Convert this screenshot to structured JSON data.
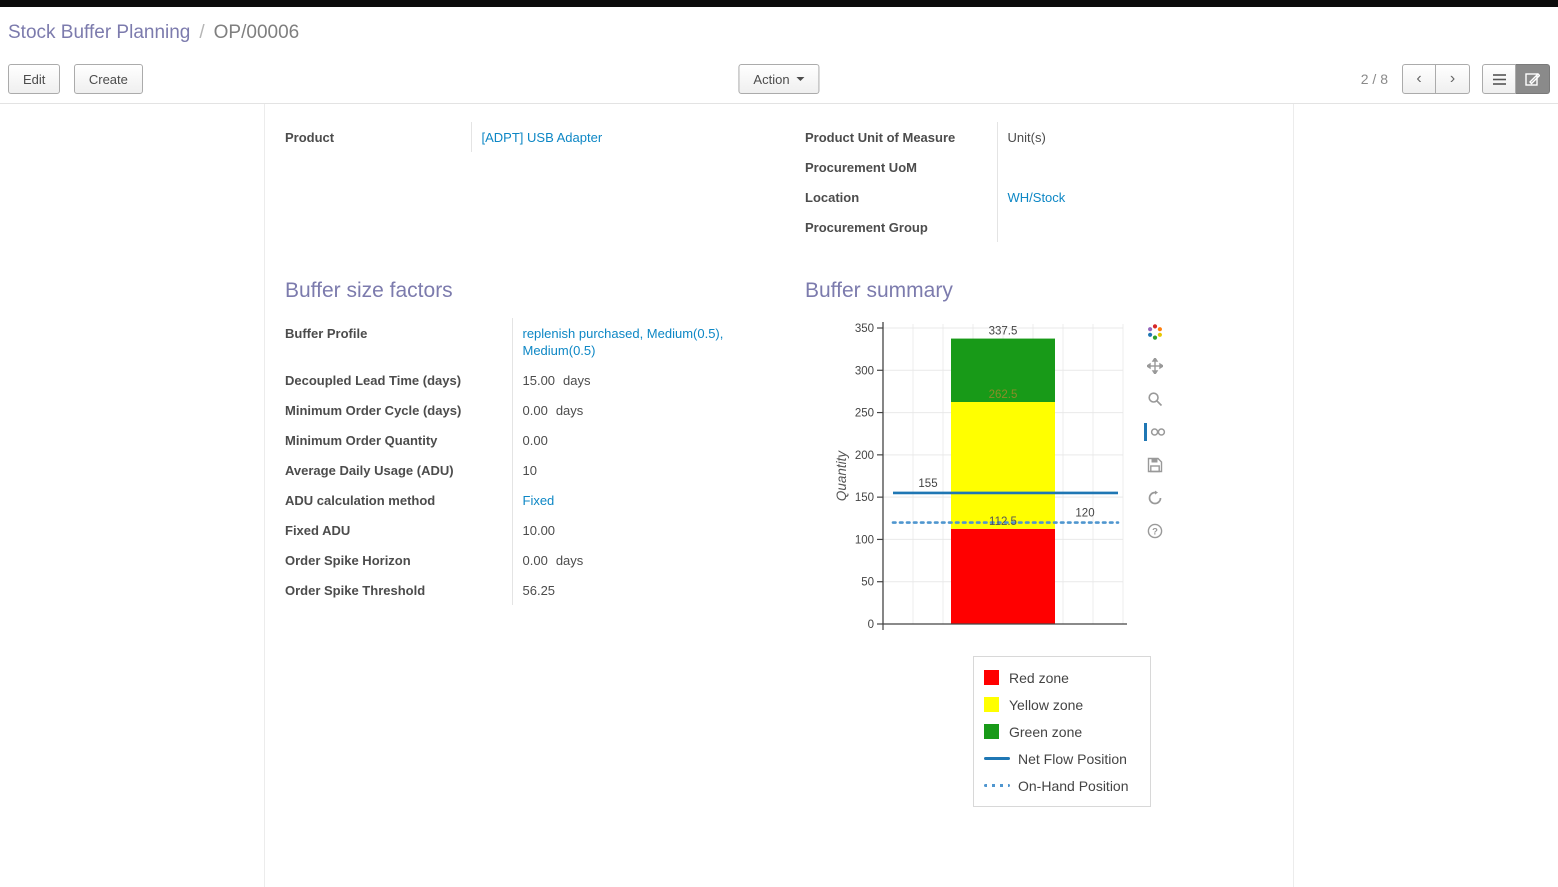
{
  "breadcrumb": {
    "parent": "Stock Buffer Planning",
    "separator": "/",
    "current": "OP/00006"
  },
  "toolbar": {
    "edit_label": "Edit",
    "create_label": "Create",
    "action_label": "Action",
    "pager_text": "2 / 8"
  },
  "icons": {
    "prev_arrow": "‹",
    "next_arrow": "›"
  },
  "form": {
    "product_group": {
      "left": [
        {
          "label": "Product",
          "value": "[ADPT] USB Adapter",
          "link": true
        }
      ],
      "right": [
        {
          "label": "Product Unit of Measure",
          "value": "Unit(s)",
          "link": false
        },
        {
          "label": "Procurement UoM",
          "value": "",
          "link": false
        },
        {
          "label": "Location",
          "value": "WH/Stock",
          "link": true
        },
        {
          "label": "Procurement Group",
          "value": "",
          "link": false
        }
      ]
    },
    "factors": {
      "title": "Buffer size factors",
      "fields": [
        {
          "label": "Buffer Profile",
          "value": "replenish purchased, Medium(0.5), Medium(0.5)",
          "link": true
        },
        {
          "label": "Decoupled Lead Time (days)",
          "value": "15.00",
          "suffix": "days"
        },
        {
          "label": "Minimum Order Cycle (days)",
          "value": "0.00",
          "suffix": "days"
        },
        {
          "label": "Minimum Order Quantity",
          "value": "0.00"
        },
        {
          "label": "Average Daily Usage (ADU)",
          "value": "10"
        },
        {
          "label": "ADU calculation method",
          "value": "Fixed",
          "link": true
        },
        {
          "label": "Fixed ADU",
          "value": "10.00"
        },
        {
          "label": "Order Spike Horizon",
          "value": "0.00",
          "suffix": "days"
        },
        {
          "label": "Order Spike Threshold",
          "value": "56.25"
        }
      ]
    },
    "summary": {
      "title": "Buffer summary"
    }
  },
  "chart_data": {
    "type": "bar",
    "title": "",
    "xlabel": "",
    "ylabel": "Quantity",
    "ylim": [
      0,
      350
    ],
    "yticks": [
      0,
      50,
      100,
      150,
      200,
      250,
      300,
      350
    ],
    "grid": true,
    "legend_position": "below-right",
    "zones": [
      {
        "name": "Red zone",
        "from": 0,
        "to": 112.5,
        "color": "#ff0000"
      },
      {
        "name": "Yellow zone",
        "from": 112.5,
        "to": 262.5,
        "color": "#ffff00"
      },
      {
        "name": "Green zone",
        "from": 262.5,
        "to": 337.5,
        "color": "#189a18"
      }
    ],
    "lines": [
      {
        "name": "Net Flow Position",
        "value": 155,
        "style": "solid",
        "color": "#1f77b4",
        "label_side": "left"
      },
      {
        "name": "On-Hand Position",
        "value": 120,
        "style": "dotted",
        "color": "#4f96cf",
        "label_side": "right"
      }
    ],
    "boundary_labels": [
      {
        "value": 337.5,
        "color": "#444444"
      },
      {
        "value": 262.5,
        "color": "#8c8c28"
      },
      {
        "value": 112.5,
        "color": "#555555"
      }
    ],
    "legend": [
      "Red zone",
      "Yellow zone",
      "Green zone",
      "Net Flow Position",
      "On-Hand Position"
    ]
  }
}
